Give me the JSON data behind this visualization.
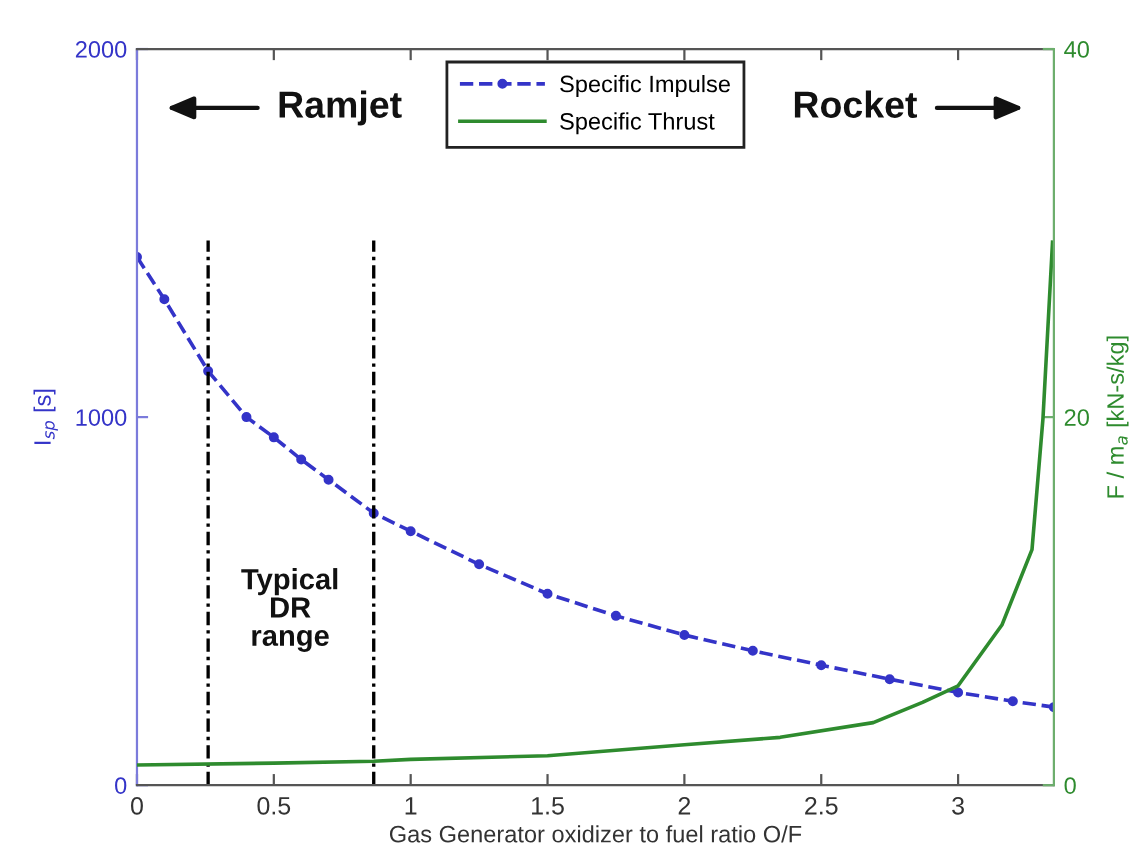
{
  "chart_data": {
    "type": "line",
    "xlabel": "Gas Generator oxidizer to fuel ratio O/F",
    "ylabel": "I$_{sp}$ [s]",
    "y2label": "F / m$_{a}$ [kN-s/kg]",
    "xlim": [
      0,
      3.35
    ],
    "xticks": [
      0,
      0.5,
      1,
      1.5,
      2,
      2.5,
      3
    ],
    "ylim": [
      0,
      2000
    ],
    "yticks": [
      0,
      1000,
      2000
    ],
    "y2lim": [
      0,
      40
    ],
    "y2ticks": [
      0,
      20,
      40
    ],
    "legend": "top",
    "series": [
      {
        "name": "Specific Impulse",
        "color": "#3434c8",
        "axis": "y",
        "line_style": "dashed",
        "marker": "circle",
        "x": [
          0,
          0.1,
          0.26,
          0.4,
          0.5,
          0.6,
          0.7,
          0.865,
          1.0,
          1.25,
          1.5,
          1.75,
          2.0,
          2.25,
          2.5,
          2.75,
          3.0,
          3.2,
          3.35
        ],
        "values": [
          1435,
          1320,
          1125,
          1000,
          945,
          885,
          830,
          739,
          690,
          600,
          520,
          460,
          408,
          365,
          326,
          288,
          252,
          228,
          212
        ]
      },
      {
        "name": "Specific Thrust",
        "color": "#2e8b2e",
        "axis": "y2",
        "line_style": "solid",
        "marker": "none",
        "x": [
          0,
          0.5,
          0.865,
          1.0,
          1.5,
          2.0,
          2.35,
          2.69,
          2.87,
          3.0,
          3.16,
          3.27,
          3.31,
          3.345
        ],
        "values": [
          1.1,
          1.2,
          1.3,
          1.4,
          1.6,
          2.2,
          2.6,
          3.4,
          4.5,
          5.4,
          8.7,
          12.8,
          19.9,
          29.5
        ]
      }
    ],
    "ref_lines": [
      {
        "axis": "x",
        "value": 0.26,
        "color": "#000000",
        "line_style": "dashdot"
      },
      {
        "axis": "x",
        "value": 0.865,
        "color": "#000000",
        "line_style": "dashdot"
      }
    ],
    "annotations": [
      "Ramjet",
      "Rocket",
      "Typical\nDR\nrange"
    ]
  }
}
